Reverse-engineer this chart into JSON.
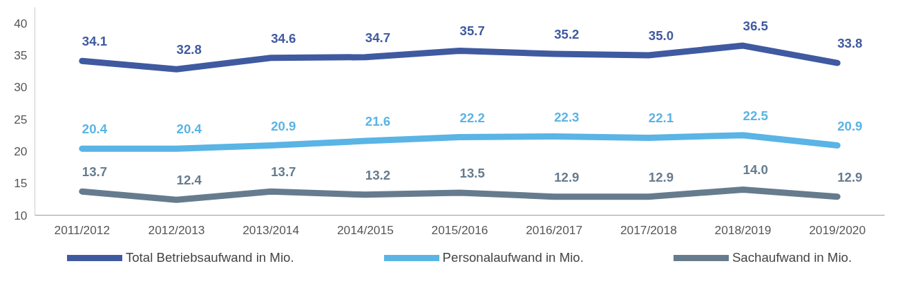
{
  "chart_data": {
    "type": "line",
    "categories": [
      "2011/2012",
      "2012/2013",
      "2013/2014",
      "2014/2015",
      "2015/2016",
      "2016/2017",
      "2017/2018",
      "2018/2019",
      "2019/2020"
    ],
    "series": [
      {
        "name": "Total Betriebsaufwand in Mio.",
        "color": "#3f5aa0",
        "values": [
          34.1,
          32.8,
          34.6,
          34.7,
          35.7,
          35.2,
          35.0,
          36.5,
          33.8
        ],
        "value_labels": [
          "34.1",
          "32.8",
          "34.6",
          "34.7",
          "35.7",
          "35.2",
          "35.0",
          "36.5",
          "33.8"
        ]
      },
      {
        "name": "Personalaufwand in Mio.",
        "color": "#5ab4e5",
        "values": [
          20.4,
          20.4,
          20.9,
          21.6,
          22.2,
          22.3,
          22.1,
          22.5,
          20.9
        ],
        "value_labels": [
          "20.4",
          "20.4",
          "20.9",
          "21.6",
          "22.2",
          "22.3",
          "22.1",
          "22.5",
          "20.9"
        ]
      },
      {
        "name": "Sachaufwand in Mio.",
        "color": "#667b8e",
        "values": [
          13.7,
          12.4,
          13.7,
          13.2,
          13.5,
          12.9,
          12.9,
          14.0,
          12.9
        ],
        "value_labels": [
          "13.7",
          "12.4",
          "13.7",
          "13.2",
          "13.5",
          "12.9",
          "12.9",
          "14.0",
          "12.9"
        ]
      }
    ],
    "ylim": [
      10,
      42.5
    ],
    "yticks": [
      10,
      15,
      20,
      25,
      30,
      35,
      40
    ],
    "grid": false,
    "legend": "bottom",
    "marker": "none",
    "line_style": "solid"
  }
}
